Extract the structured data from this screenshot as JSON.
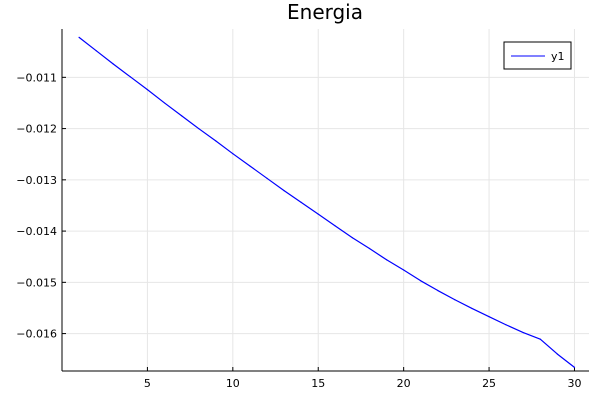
{
  "chart_data": {
    "type": "line",
    "title": "Energia",
    "xlabel": "",
    "ylabel": "",
    "xlim": [
      0,
      30.85
    ],
    "ylim": [
      -0.01673,
      -0.010057
    ],
    "grid": true,
    "legend_position": "top-right",
    "xticks": [
      5,
      10,
      15,
      20,
      25,
      30
    ],
    "xtick_labels": [
      "5",
      "10",
      "15",
      "20",
      "25",
      "30"
    ],
    "yticks": [
      -0.011,
      -0.012,
      -0.013,
      -0.014,
      -0.015,
      -0.016
    ],
    "ytick_labels": [
      "−0.011",
      "−0.012",
      "−0.013",
      "−0.014",
      "−0.015",
      "−0.016"
    ],
    "series": [
      {
        "name": "y1",
        "color": "#0000ff",
        "x": [
          1,
          2,
          3,
          4,
          5,
          6,
          7,
          8,
          9,
          10,
          11,
          12,
          13,
          14,
          15,
          16,
          17,
          18,
          19,
          20,
          21,
          22,
          23,
          24,
          25,
          26,
          27,
          28,
          29,
          30
        ],
        "y": [
          -0.01022,
          -0.01048,
          -0.01074,
          -0.01099,
          -0.01124,
          -0.0115,
          -0.01175,
          -0.012,
          -0.01224,
          -0.01249,
          -0.01273,
          -0.01297,
          -0.01321,
          -0.01344,
          -0.01367,
          -0.0139,
          -0.01413,
          -0.01434,
          -0.01456,
          -0.01476,
          -0.01497,
          -0.01516,
          -0.01534,
          -0.01551,
          -0.01567,
          -0.01583,
          -0.01598,
          -0.01611,
          -0.0164,
          -0.01666
        ]
      }
    ]
  }
}
